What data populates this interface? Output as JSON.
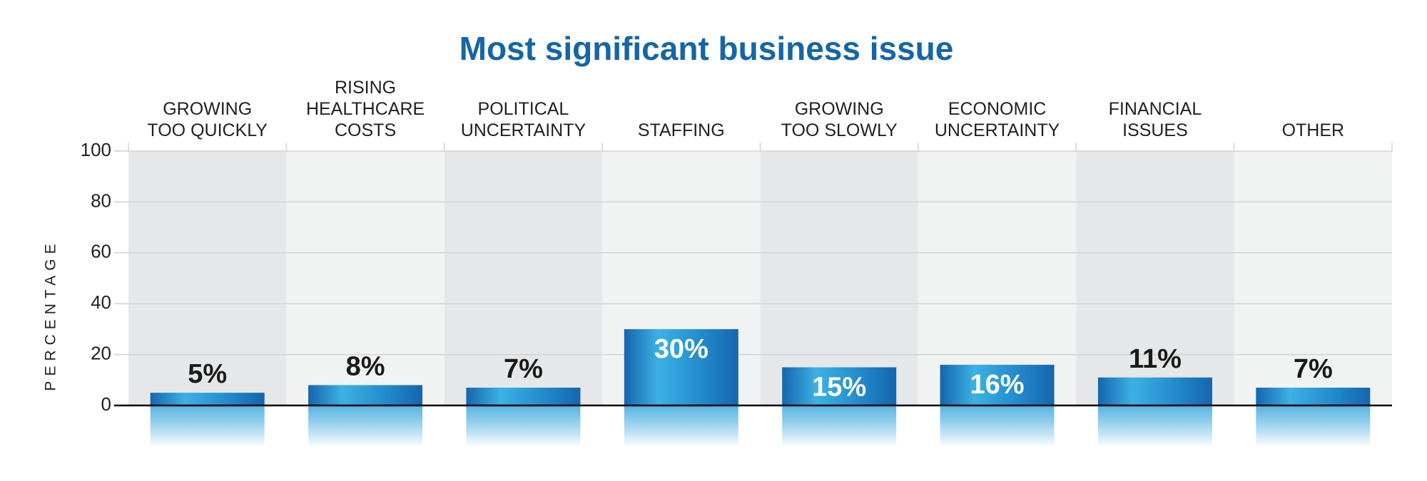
{
  "chart_data": {
    "type": "bar",
    "title": "Most significant business issue",
    "y_label": "PERCENTAGE",
    "categories": [
      "GROWING\nTOO QUICKLY",
      "RISING HEALTHCARE\nCOSTS",
      "POLITICAL\nUNCERTAINTY",
      "STAFFING",
      "GROWING\nTOO SLOWLY",
      "ECONOMIC\nUNCERTAINTY",
      "FINANCIAL\nISSUES",
      "OTHER"
    ],
    "values": [
      5,
      8,
      7,
      30,
      15,
      16,
      11,
      7
    ],
    "value_labels": [
      "5%",
      "8%",
      "7%",
      "30%",
      "15%",
      "16%",
      "11%",
      "7%"
    ],
    "color": "#1a6bb0",
    "ylim": [
      0,
      100
    ],
    "yticks": [
      0,
      20,
      40,
      60,
      80,
      100
    ],
    "grid": true
  }
}
